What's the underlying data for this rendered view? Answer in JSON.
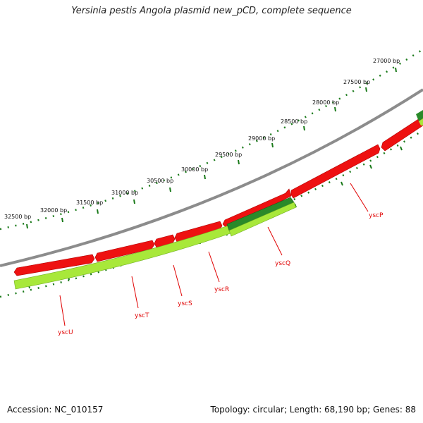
{
  "title": "Yersinia pestis Angola plasmid new_pCD, complete sequence",
  "accession": "Accession: NC_010157",
  "summary": "Topology: circular; Length: 68,190 bp; Genes: 88",
  "colors": {
    "backbone": "#888888",
    "gene_forward_red": "#ee1111",
    "gene_reverse_lime": "#a8e83a",
    "gene_dark_green": "#2a8a2a",
    "ticks": "#1a7a1a",
    "labels": "#e00000"
  },
  "ruler_labels": [
    "27000 bp",
    "27500 bp",
    "28000 bp",
    "28500 bp",
    "29000 bp",
    "29500 bp",
    "30000 bp",
    "30500 bp",
    "31000 bp",
    "31500 bp",
    "32000 bp",
    "32500 bp"
  ],
  "gene_labels": [
    "yscP",
    "yscQ",
    "yscR",
    "yscS",
    "yscT",
    "yscU"
  ]
}
